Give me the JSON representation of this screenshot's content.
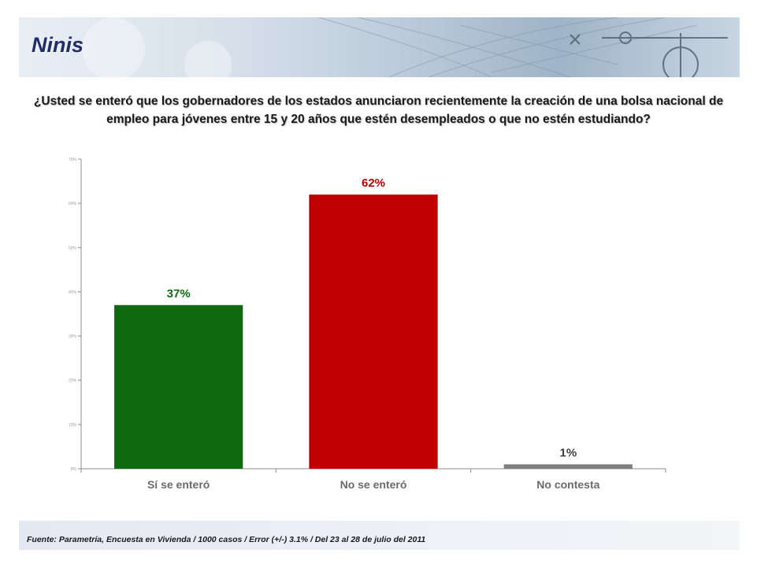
{
  "header": {
    "title": "Ninis"
  },
  "question": "¿Usted se enteró que los gobernadores de los estados anunciaron recientemente la creación de una bolsa nacional de empleo para jóvenes entre 15 y 20 años que estén desempleados o que no estén estudiando?",
  "chart_data": {
    "type": "bar",
    "categories": [
      "Sí se enteró",
      "No se enteró",
      "No contesta"
    ],
    "values": [
      37,
      62,
      1
    ],
    "data_labels": [
      "37%",
      "62%",
      "1%"
    ],
    "colors": [
      "#0f6a0f",
      "#c00000",
      "#7f7f7f"
    ],
    "label_colors": [
      "#0f6a0f",
      "#c00000",
      "#404040"
    ],
    "ylim": [
      0,
      70
    ],
    "yticks": [
      0,
      10,
      20,
      30,
      40,
      50,
      60,
      70
    ],
    "ytick_labels": [
      "0%",
      "10%",
      "20%",
      "30%",
      "40%",
      "50%",
      "60%",
      "70%"
    ],
    "grid": false,
    "title": "",
    "xlabel": "",
    "ylabel": ""
  },
  "footer": {
    "source": "Fuente: Parametría, Encuesta en Vivienda / 1000 casos / Error (+/-) 3.1% / Del 23 al 28 de julio del 2011"
  }
}
